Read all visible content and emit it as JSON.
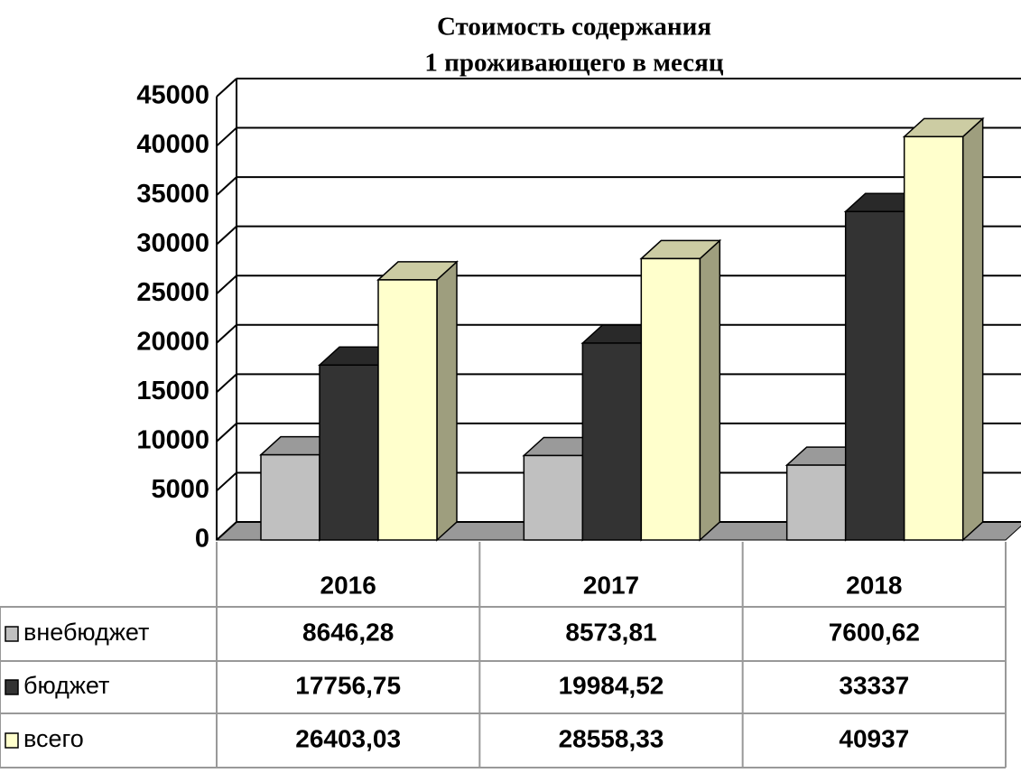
{
  "chart_data": {
    "type": "bar3d",
    "title": [
      "Стоимость содержания",
      "1 проживающего в месяц"
    ],
    "categories": [
      "2016",
      "2017",
      "2018"
    ],
    "series": [
      {
        "name": "внебюджет",
        "color": "#c0c0c0",
        "values": [
          8646.28,
          8573.81,
          7600.62
        ],
        "value_labels": [
          "8646,28",
          "8573,81",
          "7600,62"
        ]
      },
      {
        "name": "бюджет",
        "color": "#333333",
        "values": [
          17756.75,
          19984.52,
          33337
        ],
        "value_labels": [
          "17756,75",
          "19984,52",
          "33337"
        ]
      },
      {
        "name": "всего",
        "color": "#ffffcc",
        "values": [
          26403.03,
          28558.33,
          40937
        ],
        "value_labels": [
          "26403,03",
          "28558,33",
          "40937"
        ]
      }
    ],
    "ylim": [
      0,
      45000
    ],
    "yticks": [
      0,
      5000,
      10000,
      15000,
      20000,
      25000,
      30000,
      35000,
      40000,
      45000
    ],
    "grid": true
  }
}
